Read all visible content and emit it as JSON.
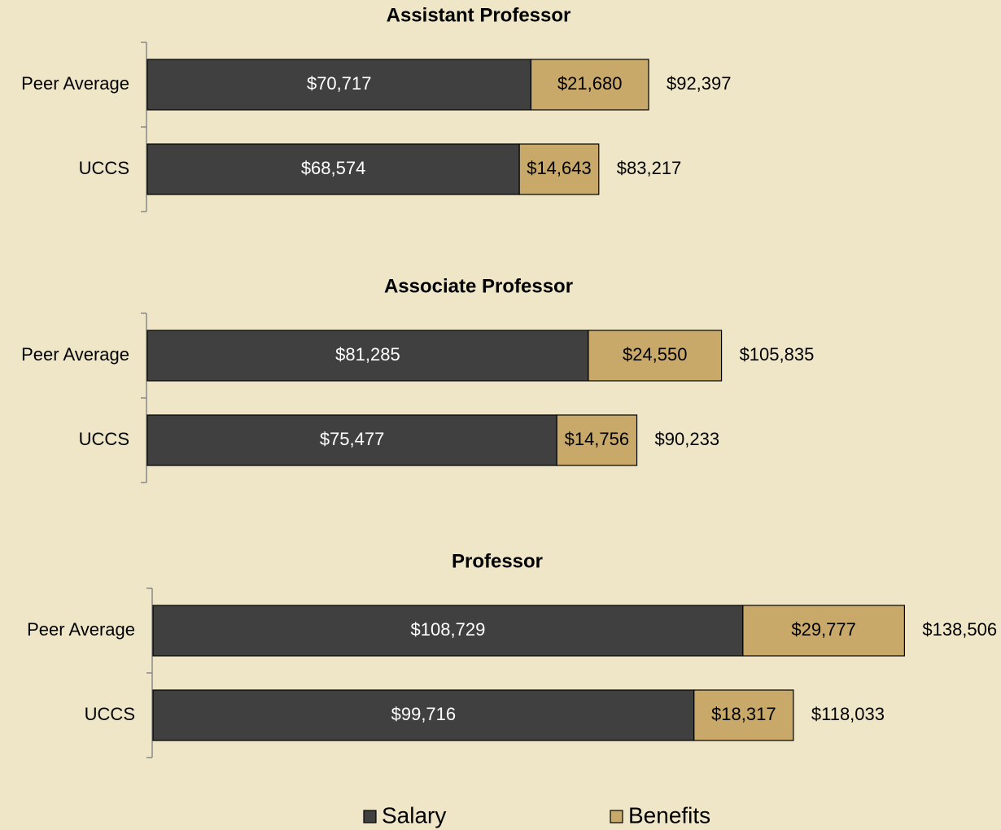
{
  "chart_data": [
    {
      "type": "bar",
      "orientation": "horizontal",
      "stacked": true,
      "title": "Assistant Professor",
      "categories": [
        "Peer Average",
        "UCCS"
      ],
      "series": [
        {
          "name": "Salary",
          "color": "#404040",
          "values": [
            70717,
            68574
          ],
          "value_labels": [
            "$70,717",
            "$68,574"
          ]
        },
        {
          "name": "Benefits",
          "color": "#c8a96a",
          "values": [
            21680,
            14643
          ],
          "value_labels": [
            "$21,680",
            "$14,643"
          ]
        }
      ],
      "totals": [
        92397,
        83217
      ],
      "total_labels": [
        "$92,397",
        "$83,217"
      ],
      "xlim": [
        0,
        150000
      ]
    },
    {
      "type": "bar",
      "orientation": "horizontal",
      "stacked": true,
      "title": "Associate Professor",
      "categories": [
        "Peer Average",
        "UCCS"
      ],
      "series": [
        {
          "name": "Salary",
          "color": "#404040",
          "values": [
            81285,
            75477
          ],
          "value_labels": [
            "$81,285",
            "$75,477"
          ]
        },
        {
          "name": "Benefits",
          "color": "#c8a96a",
          "values": [
            24550,
            14756
          ],
          "value_labels": [
            "$24,550",
            "$14,756"
          ]
        }
      ],
      "totals": [
        105835,
        90233
      ],
      "total_labels": [
        "$105,835",
        "$90,233"
      ],
      "xlim": [
        0,
        150000
      ]
    },
    {
      "type": "bar",
      "orientation": "horizontal",
      "stacked": true,
      "title": "Professor",
      "categories": [
        "Peer Average",
        "UCCS"
      ],
      "series": [
        {
          "name": "Salary",
          "color": "#404040",
          "values": [
            108729,
            99716
          ],
          "value_labels": [
            "$108,729",
            "$99,716"
          ]
        },
        {
          "name": "Benefits",
          "color": "#c8a96a",
          "values": [
            29777,
            18317
          ],
          "value_labels": [
            "$29,777",
            "$18,317"
          ]
        }
      ],
      "totals": [
        138506,
        118033
      ],
      "total_labels": [
        "$138,506",
        "$118,033"
      ],
      "xlim": [
        0,
        150000
      ]
    }
  ]
}
